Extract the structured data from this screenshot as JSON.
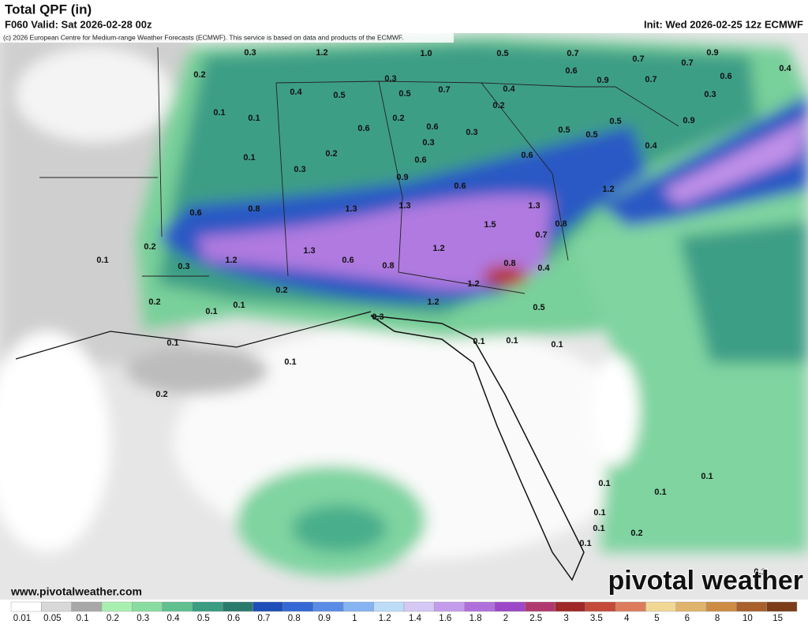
{
  "header": {
    "title": "Total QPF (in)",
    "valid": "F060 Valid: Sat 2026-02-28 00z",
    "copyright": "(c) 2026 European Centre for Medium-range Weather Forecasts (ECMWF). This service is based on data and products of the ECMWF.",
    "init": "Init: Wed 2026-02-25 12z ECMWF"
  },
  "map_labels": [
    "0.3",
    "1.2",
    "1.0",
    "0.5",
    "0.7",
    "0.9",
    "0.7",
    "0.7",
    "0.4",
    "0.2",
    "0.6",
    "0.9",
    "0.7",
    "0.6",
    "0.3",
    "0.4",
    "0.5",
    "0.5",
    "0.7",
    "0.4",
    "0.3",
    "0.1",
    "0.1",
    "0.2",
    "0.2",
    "0.5",
    "0.9",
    "0.6",
    "0.6",
    "0.3",
    "0.5",
    "0.5",
    "0.3",
    "0.4",
    "0.2",
    "0.1",
    "0.6",
    "0.6",
    "0.3",
    "0.9",
    "0.6",
    "1.2",
    "0.8",
    "0.6",
    "1.3",
    "1.3",
    "1.3",
    "1.5",
    "0.8",
    "0.7",
    "1.3",
    "1.2",
    "0.1",
    "0.2",
    "1.2",
    "0.6",
    "0.3",
    "0.8",
    "0.8",
    "0.4",
    "1.2",
    "0.2",
    "0.2",
    "0.1",
    "1.2",
    "0.5",
    "0.1",
    "0.3",
    "0.1",
    "0.1",
    "0.1",
    "0.1",
    "0.1",
    "0.2",
    "0.1",
    "0.1",
    "0.1",
    "0.1",
    "0.1",
    "0.2",
    "0.1",
    "0.1"
  ],
  "site": "www.pivotalweather.com",
  "brand": "pivotal weather",
  "colorbar": {
    "labels": [
      "0.01",
      "0.05",
      "0.1",
      "0.2",
      "0.3",
      "0.4",
      "0.5",
      "0.6",
      "0.7",
      "0.8",
      "0.9",
      "1",
      "1.2",
      "1.4",
      "1.6",
      "1.8",
      "2",
      "2.5",
      "3",
      "3.5",
      "4",
      "5",
      "6",
      "8",
      "10",
      "15"
    ],
    "colors": [
      "#ffffff",
      "#d8d8d8",
      "#a8a8a8",
      "#a8f0b0",
      "#88dca0",
      "#60c090",
      "#3a9c80",
      "#2a7a6c",
      "#1e4eb8",
      "#3468d4",
      "#5a8ce6",
      "#86b4f2",
      "#bcdcf8",
      "#d4c8f4",
      "#c49cec",
      "#b070dc",
      "#9c48c8",
      "#b03a70",
      "#a02828",
      "#c44a3a",
      "#dc7c5c",
      "#f0d894",
      "#e0b46c",
      "#cc8c44",
      "#a8602c",
      "#7c3c18"
    ]
  }
}
